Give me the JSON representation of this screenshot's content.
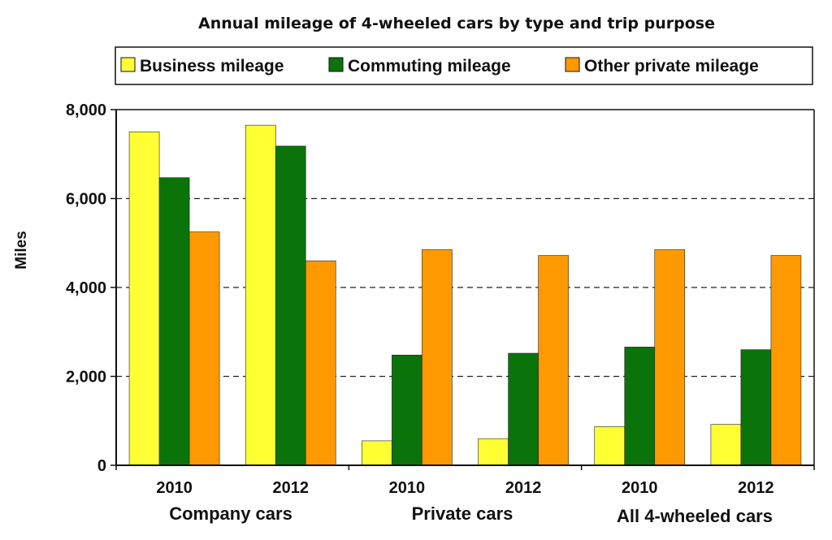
{
  "chart_data": {
    "type": "bar",
    "title": "Annual mileage of 4-wheeled cars by type and trip purpose",
    "xlabel": "",
    "ylabel": "Miles",
    "ylim": [
      0,
      8000
    ],
    "yticks": [
      0,
      2000,
      4000,
      6000,
      8000
    ],
    "ytick_labels": [
      "0",
      "2,000",
      "4,000",
      "6,000",
      "8,000"
    ],
    "grid": "dashed horizontal",
    "legend_position": "top",
    "groups": [
      {
        "label": "Company cars",
        "categories": [
          "2010",
          "2012"
        ]
      },
      {
        "label": "Private cars",
        "categories": [
          "2010",
          "2012"
        ]
      },
      {
        "label": "All 4-wheeled cars",
        "categories": [
          "2010",
          "2012"
        ]
      }
    ],
    "categories": [
      "2010",
      "2012",
      "2010",
      "2012",
      "2010",
      "2012"
    ],
    "series": [
      {
        "name": "Business mileage",
        "color": "#ffff33",
        "values": [
          7500,
          7650,
          550,
          600,
          870,
          920
        ]
      },
      {
        "name": "Commuting mileage",
        "color": "#0a730a",
        "values": [
          6470,
          7180,
          2480,
          2520,
          2660,
          2600
        ]
      },
      {
        "name": "Other private mileage",
        "color": "#ff9900",
        "values": [
          5250,
          4600,
          4850,
          4720,
          4850,
          4720
        ]
      }
    ]
  }
}
